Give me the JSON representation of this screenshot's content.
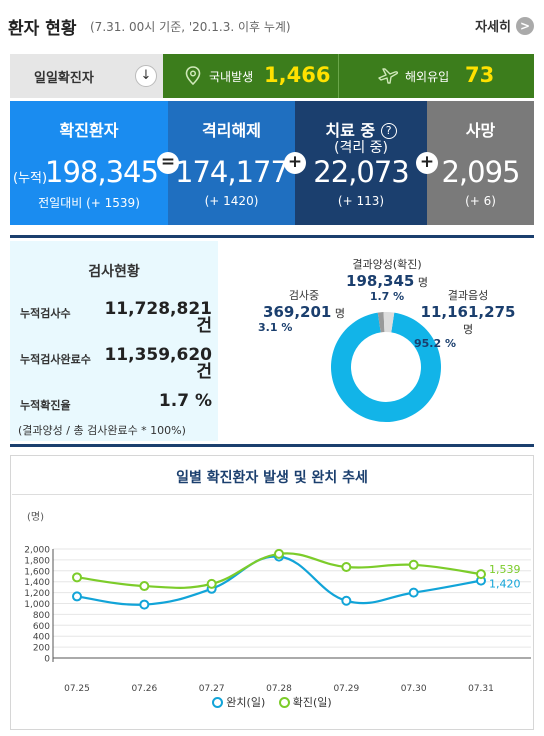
{
  "header": {
    "title": "환자 현황",
    "subtitle": "(7.31. 00시 기준, '20.1.3. 이후 누계)",
    "more_label": "자세히",
    "more_icon": ">"
  },
  "daily": {
    "label": "일일확진자",
    "arrow_icon": "↓",
    "domestic_label": "국내발생",
    "domestic_value": "1,466",
    "imported_label": "해외유입",
    "imported_value": "73"
  },
  "stats": {
    "confirmed": {
      "title": "확진환자",
      "prefix": "(누적)",
      "value": "198,345",
      "diff": "전일대비 (+ 1539)"
    },
    "released": {
      "title": "격리해제",
      "value": "174,177",
      "diff": "(+ 1420)"
    },
    "treating": {
      "title": "치료 중",
      "title2": "(격리 중)",
      "value": "22,073",
      "diff": "(+ 113)"
    },
    "deaths": {
      "title": "사망",
      "value": "2,095",
      "diff": "(+ 6)"
    },
    "op_equals": "=",
    "op_plus": "+",
    "help_icon": "?"
  },
  "tests": {
    "title": "검사현황",
    "rows": [
      {
        "key": "누적검사수",
        "value": "11,728,821",
        "unit": "건"
      },
      {
        "key": "누적검사완료수",
        "value": "11,359,620",
        "unit": "건"
      },
      {
        "key": "누적확진율",
        "value": "1.7 %"
      }
    ],
    "note": "(결과양성 / 총 검사완료수 * 100%)",
    "donut": {
      "positive_label": "결과양성(확진)",
      "positive_value": "198,345",
      "positive_unit": "명",
      "positive_pct": "1.7 %",
      "testing_label": "검사중",
      "testing_value": "369,201",
      "testing_unit": "명",
      "testing_pct": "3.1 %",
      "negative_label": "결과음성",
      "negative_value": "11,161,275",
      "negative_unit": "명",
      "negative_pct": "95.2 %",
      "shares": [
        {
          "name": "결과음성",
          "value": 95.2,
          "color": "#12b4e8"
        },
        {
          "name": "결과양성",
          "value": 1.7,
          "color": "#999999"
        },
        {
          "name": "검사중",
          "value": 3.1,
          "color": "#dddddd"
        }
      ]
    }
  },
  "chart_data": {
    "type": "line",
    "title": "일별 확진환자 발생 및 완치 추세",
    "ylabel": "(명)",
    "categories": [
      "07.25",
      "07.26",
      "07.27",
      "07.28",
      "07.29",
      "07.30",
      "07.31"
    ],
    "ylim": [
      0,
      2000
    ],
    "yticks": [
      0,
      200,
      400,
      600,
      800,
      1000,
      1200,
      1400,
      1600,
      1800,
      2000
    ],
    "ytick_labels": [
      "0",
      "200",
      "400",
      "600",
      "800",
      "1,000",
      "1,200",
      "1,400",
      "1,600",
      "1,800",
      "2,000"
    ],
    "series": [
      {
        "name": "완치(일)",
        "color": "#12a4d8",
        "values": [
          1130,
          980,
          1270,
          1860,
          1050,
          1200,
          1420
        ],
        "end_label": "1,420"
      },
      {
        "name": "확진(일)",
        "color": "#7ccc2a",
        "values": [
          1480,
          1320,
          1360,
          1910,
          1670,
          1710,
          1539
        ],
        "end_label": "1,539"
      }
    ]
  }
}
